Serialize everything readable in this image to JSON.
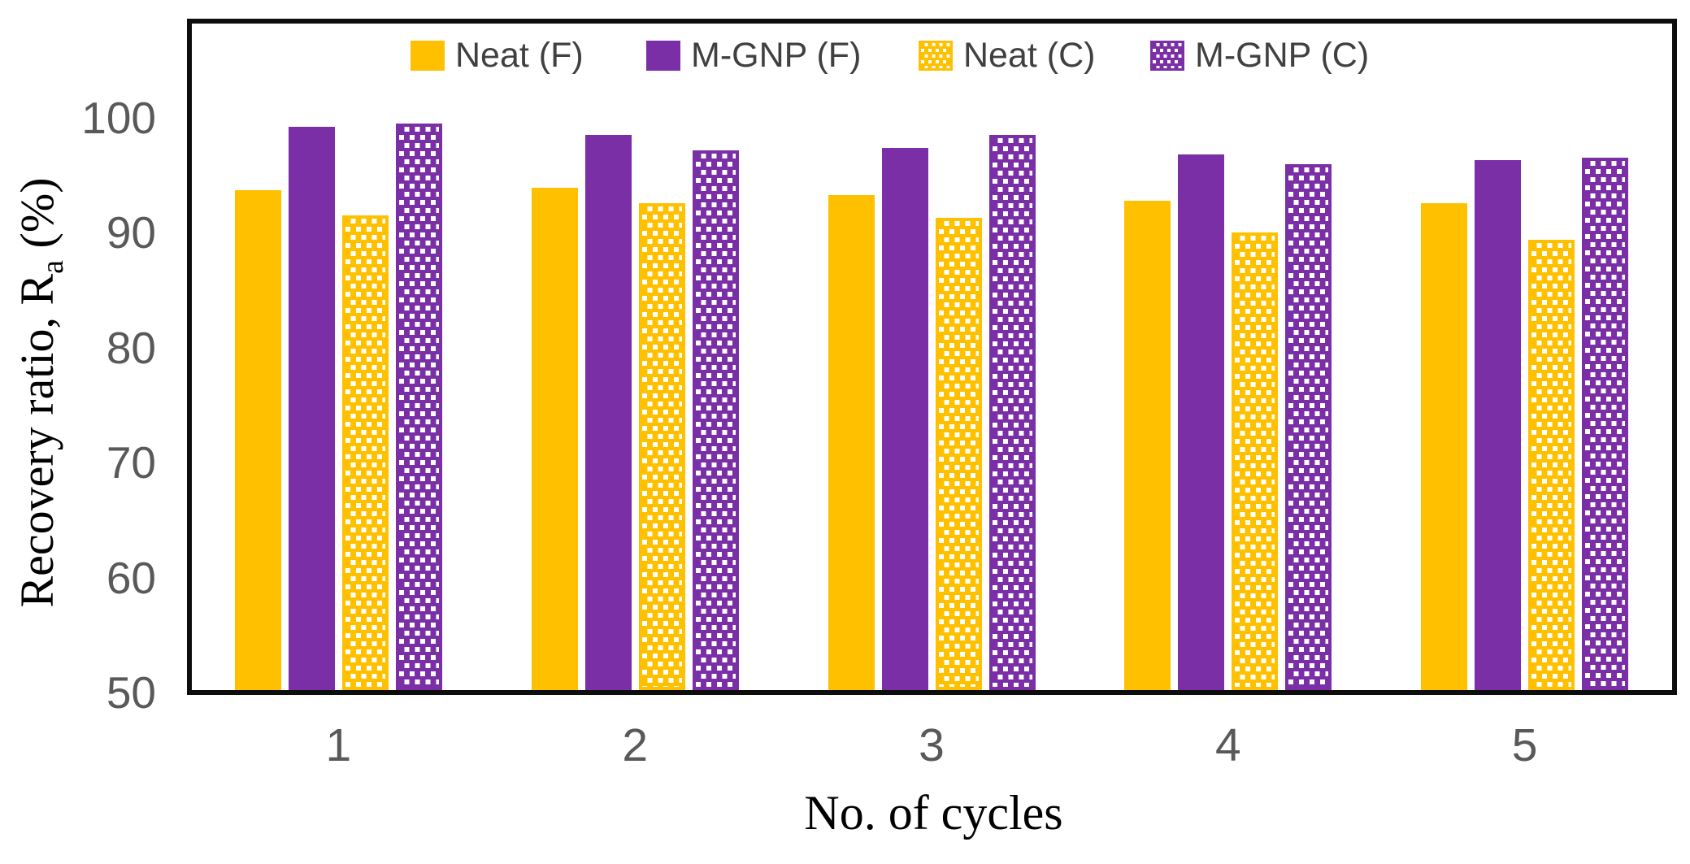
{
  "chart_data": {
    "type": "bar",
    "title": "",
    "xlabel": "No. of cycles",
    "ylabel_prefix": "Recovery ratio, R",
    "ylabel_sub": "a",
    "ylabel_suffix": " (%)",
    "categories": [
      "1",
      "2",
      "3",
      "4",
      "5"
    ],
    "series": [
      {
        "name": "Neat (F)",
        "fill": "solid",
        "color": "#FFC000",
        "values": [
          93.7,
          93.9,
          93.3,
          92.8,
          92.6
        ]
      },
      {
        "name": "M-GNP (F)",
        "fill": "solid",
        "color": "#7B2FA6",
        "values": [
          99.2,
          98.5,
          97.4,
          96.8,
          96.3
        ]
      },
      {
        "name": "Neat (C)",
        "fill": "dotted",
        "color": "#FFC000",
        "values": [
          91.5,
          92.6,
          91.3,
          90.0,
          89.4
        ]
      },
      {
        "name": "M-GNP (C)",
        "fill": "dotted",
        "color": "#7B2FA6",
        "values": [
          99.5,
          97.2,
          98.5,
          96.0,
          96.5
        ]
      }
    ],
    "y_ticks": [
      50,
      60,
      70,
      80,
      90,
      100
    ],
    "ylim": [
      50,
      100
    ],
    "grid": false,
    "legend_position": "top",
    "axis_color": "#0d0d0d",
    "tick_label_color": "#595959",
    "legend_text_color": "#404040",
    "plot_background": "#ffffff"
  }
}
